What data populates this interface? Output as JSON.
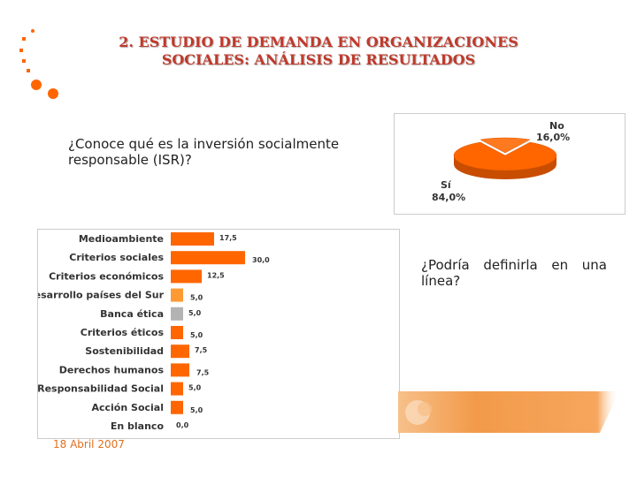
{
  "title_line1": "2. ESTUDIO DE DEMANDA EN ORGANIZACIONES",
  "title_line2": "SOCIALES: ANÁLISIS DE RESULTADOS",
  "question1": "¿Conoce qué es la inversión socialmente responsable (ISR)?",
  "question2": "¿Podría definirla en una línea?",
  "date": "18 Abril 2007",
  "colors": {
    "accent": "#ff6600",
    "grey": "#b3b3b3",
    "title": "#c0392b"
  },
  "chart_data": [
    {
      "type": "pie",
      "categories": [
        "No",
        "Sí"
      ],
      "values": [
        16.0,
        84.0
      ],
      "labels": [
        "16,0%",
        "84,0%"
      ],
      "title": ""
    },
    {
      "type": "bar",
      "orientation": "horizontal",
      "categories": [
        "Medioambiente",
        "Criterios sociales",
        "Criterios económicos",
        "Desarrollo países del Sur",
        "Banca ética",
        "Criterios éticos",
        "Sostenibilidad",
        "Derechos humanos",
        "Responsabilidad Social",
        "Acción Social",
        "En blanco"
      ],
      "values": [
        17.5,
        30.0,
        12.5,
        5.0,
        5.0,
        5.0,
        7.5,
        7.5,
        5.0,
        5.0,
        0.0
      ],
      "value_labels": [
        "17,5",
        "30,0",
        "12,5",
        "5,0",
        "5,0",
        "5,0",
        "7,5",
        "7,5",
        "5,0",
        "5,0",
        "0,0"
      ],
      "bar_colors": [
        "#ff6600",
        "#ff6600",
        "#ff6600",
        "#ff9933",
        "#b3b3b3",
        "#ff6600",
        "#ff6600",
        "#ff6600",
        "#ff6600",
        "#ff6600",
        "#ff6600"
      ],
      "xlim": [
        0,
        30
      ],
      "title": "",
      "xlabel": "",
      "ylabel": ""
    }
  ]
}
